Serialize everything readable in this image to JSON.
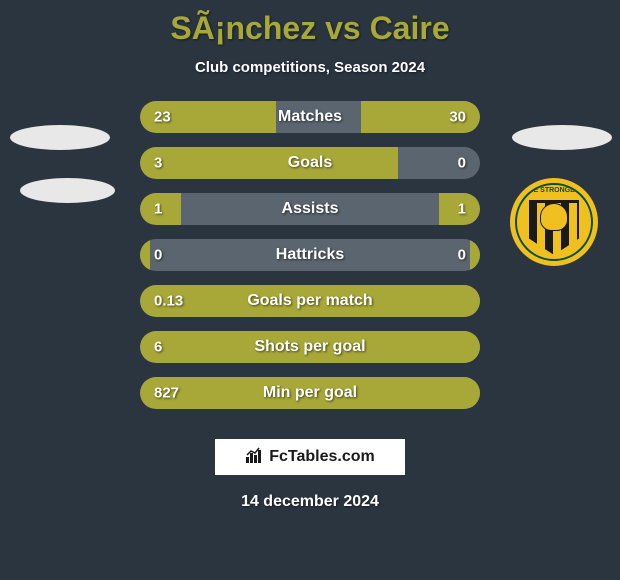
{
  "title": "SÃ¡nchez vs Caire",
  "subtitle": "Club competitions, Season 2024",
  "date": "14 december 2024",
  "watermark": {
    "text": "FcTables.com"
  },
  "badge": {
    "text": "THE STRONGEST"
  },
  "colors": {
    "background": "#2a3540",
    "accent": "#a8a838",
    "bar_bg": "#5a6570",
    "text": "#ffffff",
    "badge_yellow": "#f0c020",
    "badge_green": "#0a5030",
    "badge_black": "#1a1a1a"
  },
  "stats": [
    {
      "label": "Matches",
      "left_value": "23",
      "right_value": "30",
      "left_pct": 40,
      "right_pct": 35
    },
    {
      "label": "Goals",
      "left_value": "3",
      "right_value": "0",
      "left_pct": 76,
      "right_pct": 0
    },
    {
      "label": "Assists",
      "left_value": "1",
      "right_value": "1",
      "left_pct": 12,
      "right_pct": 12
    },
    {
      "label": "Hattricks",
      "left_value": "0",
      "right_value": "0",
      "left_pct": 3,
      "right_pct": 3
    },
    {
      "label": "Goals per match",
      "left_value": "0.13",
      "right_value": "",
      "left_pct": 100,
      "right_pct": 0
    },
    {
      "label": "Shots per goal",
      "left_value": "6",
      "right_value": "",
      "left_pct": 100,
      "right_pct": 0
    },
    {
      "label": "Min per goal",
      "left_value": "827",
      "right_value": "",
      "left_pct": 100,
      "right_pct": 0
    }
  ]
}
